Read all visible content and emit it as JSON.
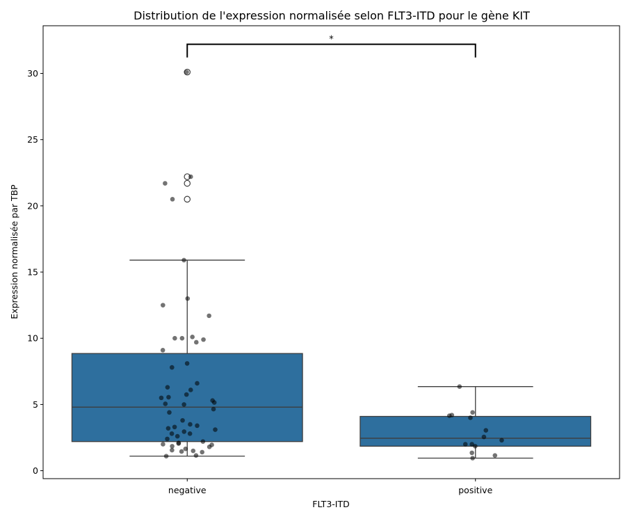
{
  "chart_data": {
    "type": "box",
    "title": "Distribution de l'expression normalisée selon FLT3-ITD pour le gène KIT",
    "xlabel": "FLT3-ITD",
    "ylabel": "Expression normalisée par TBP",
    "categories": [
      "negative",
      "positive"
    ],
    "yticks": [
      0,
      5,
      10,
      15,
      20,
      25,
      30
    ],
    "ylim": [
      -0.6,
      33.6
    ],
    "grid": false,
    "box_color": "#2e6f9e",
    "point_color": "#000000",
    "boxes": [
      {
        "category": "negative",
        "whisker_low": 1.1,
        "q1": 2.2,
        "median": 4.8,
        "q3": 8.85,
        "whisker_high": 15.9,
        "outliers": [
          20.5,
          21.7,
          22.2,
          30.1
        ]
      },
      {
        "category": "positive",
        "whisker_low": 0.95,
        "q1": 1.85,
        "median": 2.45,
        "q3": 4.1,
        "whisker_high": 6.35,
        "outliers": []
      }
    ],
    "points": [
      {
        "category": "negative",
        "values": [
          30.1,
          22.2,
          21.7,
          20.5,
          15.9,
          13.0,
          12.5,
          11.7,
          10.1,
          10.0,
          10.0,
          9.9,
          9.7,
          9.1,
          8.1,
          7.8,
          6.6,
          6.3,
          6.1,
          5.75,
          5.55,
          5.5,
          5.3,
          5.15,
          5.05,
          5.0,
          4.65,
          4.4,
          3.8,
          3.5,
          3.4,
          3.3,
          3.2,
          3.1,
          2.95,
          2.8,
          2.8,
          2.6,
          2.4,
          2.2,
          2.1,
          2.05,
          2.0,
          1.95,
          1.85,
          1.8,
          1.65,
          1.55,
          1.5,
          1.45,
          1.4,
          1.15,
          1.1
        ]
      },
      {
        "category": "positive",
        "values": [
          6.35,
          4.4,
          4.2,
          4.15,
          4.0,
          3.05,
          2.55,
          2.3,
          2.0,
          2.0,
          1.85,
          1.35,
          1.15,
          0.95
        ]
      }
    ],
    "significance": {
      "pair": [
        "negative",
        "positive"
      ],
      "label": "*"
    }
  }
}
